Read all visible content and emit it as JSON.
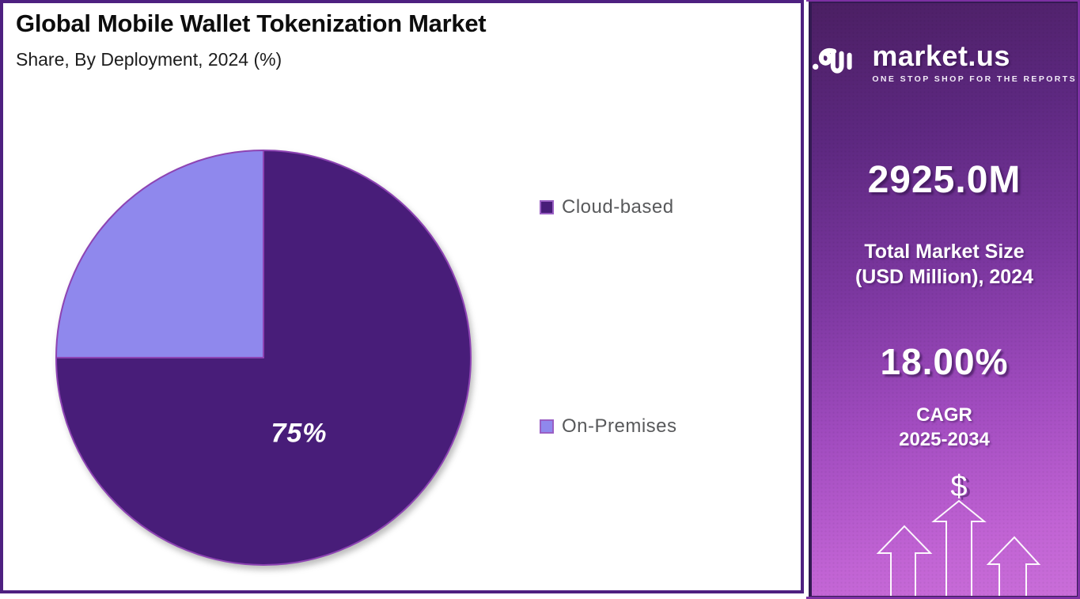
{
  "header": {
    "title": "Global Mobile Wallet Tokenization Market",
    "subtitle": "Share, By Deployment, 2024 (%)"
  },
  "chart_data": {
    "type": "pie",
    "title": "Global Mobile Wallet Tokenization Market",
    "subtitle": "Share, By Deployment, 2024 (%)",
    "start_angle_deg": -90,
    "direction": "clockwise",
    "stroke_color": "#8d43b3",
    "legend_position": "right",
    "slices": [
      {
        "label": "Cloud-based",
        "value": 75,
        "pct_label": "75%",
        "color": "#481d79"
      },
      {
        "label": "On-Premises",
        "value": 25,
        "pct_label": "",
        "color": "#8f88ed"
      }
    ]
  },
  "sidebar": {
    "logo": {
      "brand": "market.us",
      "tagline": "ONE STOP SHOP FOR THE REPORTS"
    },
    "market_size": {
      "value": "2925.0M",
      "label_line1": "Total Market Size",
      "label_line2": "(USD Million), 2024"
    },
    "cagr": {
      "value": "18.00%",
      "label_line1": "CAGR",
      "label_line2": "2025-2034"
    },
    "dollar_symbol": "$",
    "colors": {
      "gradient_top": "#4b1f63",
      "gradient_bottom": "#ca6ed9",
      "inner_border": "#331a52",
      "outer_border": "#7d30a3"
    }
  },
  "panel": {
    "border_color": "#4e2080"
  }
}
